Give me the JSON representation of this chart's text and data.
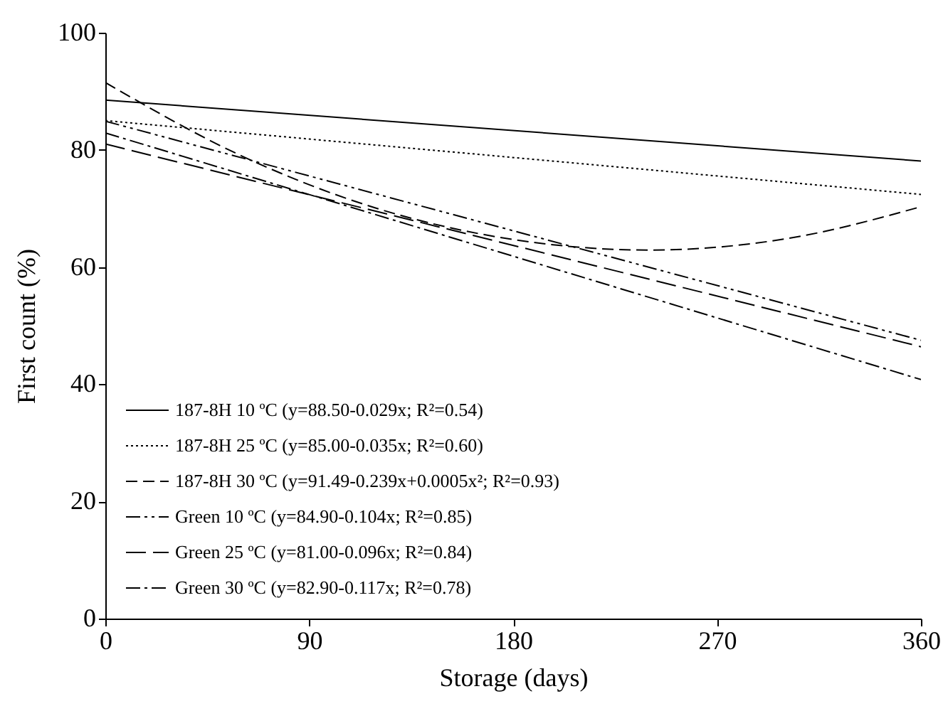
{
  "chart_data": {
    "type": "line",
    "xlabel": "Storage (days)",
    "ylabel": "First count (%)",
    "xlim": [
      0,
      360
    ],
    "xticks": [
      0,
      90,
      180,
      270,
      360
    ],
    "ylim": [
      0,
      100
    ],
    "yticks": [
      0,
      20,
      40,
      60,
      80,
      100
    ],
    "grid": false,
    "legend": "bottom left",
    "marker": "none",
    "series": [
      {
        "name": "187-8H 10 ºC (y=88.50-0.029x; R²=0.54)",
        "color": "#000000",
        "line_style": "solid",
        "x": [
          0,
          360
        ],
        "values": [
          88.5,
          78.1
        ]
      },
      {
        "name": "187-8H 25 ºC (y=85.00-0.035x; R²=0.60)",
        "color": "#000000",
        "line_style": "dotted",
        "x": [
          0,
          360
        ],
        "values": [
          85.0,
          72.4
        ]
      },
      {
        "name": "187-8H 30 ºC (y=91.49-0.239x+0.0005x²; R²=0.93)",
        "color": "#000000",
        "line_style": "dashed",
        "x": [
          0,
          60,
          120,
          180,
          240,
          300,
          360
        ],
        "values": [
          91.5,
          79.0,
          70.0,
          64.7,
          62.9,
          64.8,
          70.3
        ]
      },
      {
        "name": "Green 10 ºC (y=84.90-0.104x; R²=0.85)",
        "color": "#000000",
        "line_style": "dashed",
        "x": [
          0,
          360
        ],
        "values": [
          84.9,
          47.5
        ]
      },
      {
        "name": "Green 25 ºC (y=81.00-0.096x; R²=0.84)",
        "color": "#000000",
        "line_style": "dashed",
        "x": [
          0,
          360
        ],
        "values": [
          81.0,
          46.4
        ]
      },
      {
        "name": "Green 30 ºC (y=82.90-0.117x; R²=0.78)",
        "color": "#000000",
        "line_style": "dashed",
        "x": [
          0,
          360
        ],
        "values": [
          82.9,
          40.8
        ]
      }
    ]
  }
}
